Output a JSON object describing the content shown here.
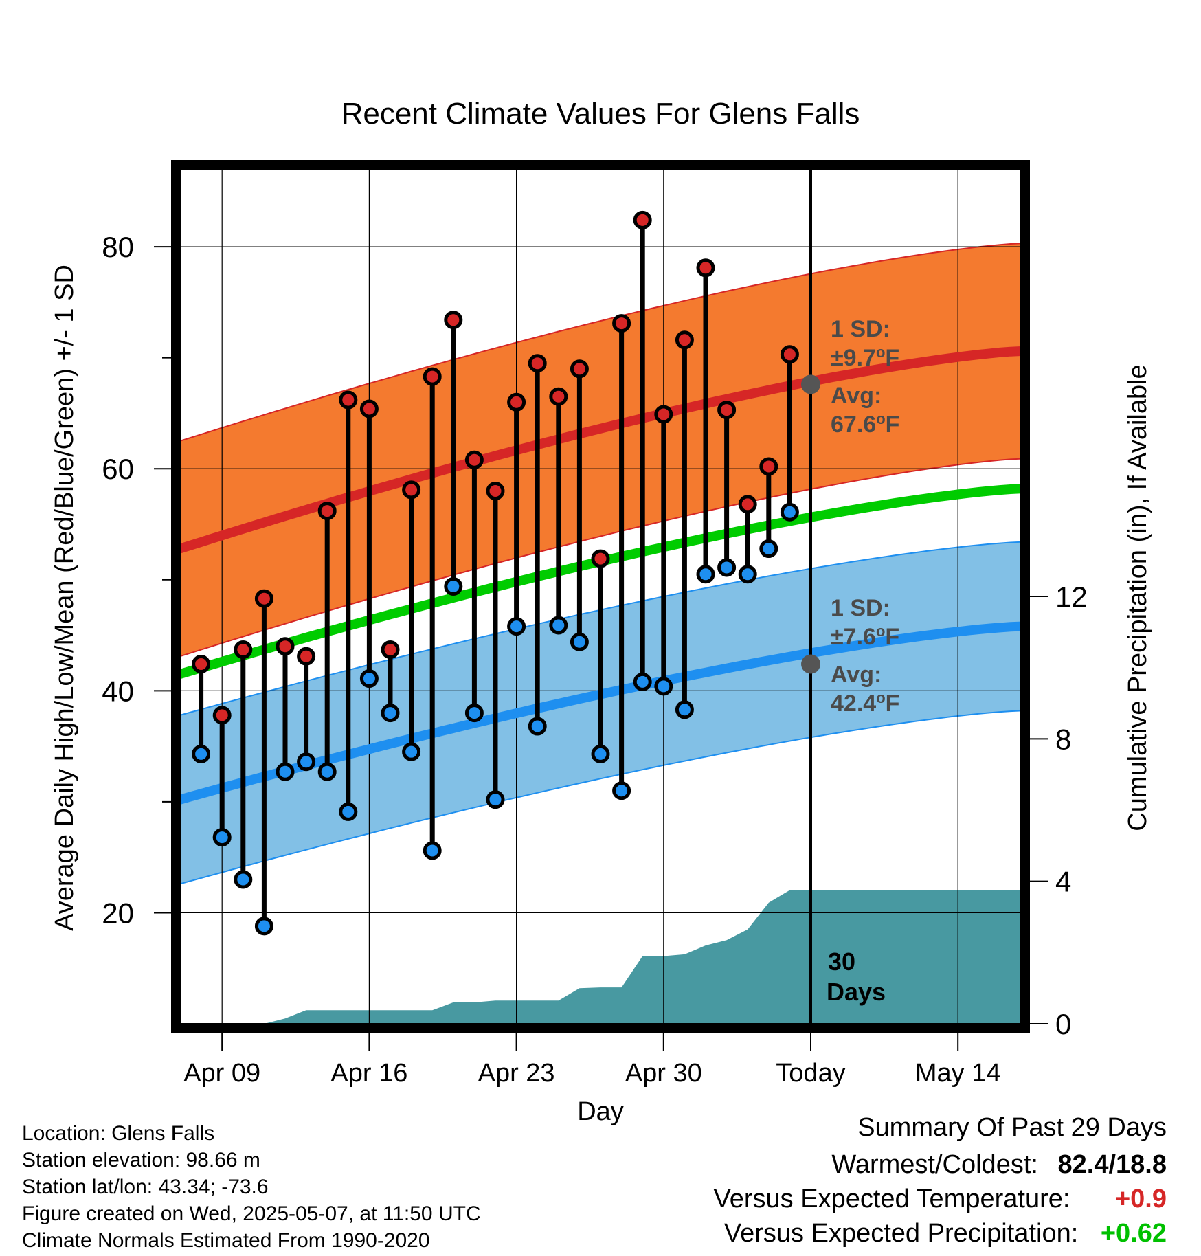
{
  "chart_data": {
    "type": "line",
    "title": "Recent Climate Values For Glens Falls",
    "xlabel": "Day",
    "ylabel": "Average Daily High/Low/Mean (Red/Blue/Green) +/- 1 SD",
    "y2label": "Cumulative Precipitation (in), If Available",
    "x_tick_labels": [
      "Apr 09",
      "Apr 16",
      "Apr 23",
      "Apr 30",
      "Today",
      "May 14"
    ],
    "ylim": [
      10,
      87
    ],
    "y_ticks": [
      20,
      40,
      60,
      80
    ],
    "y2lim": [
      0,
      24
    ],
    "y2_ticks": [
      0,
      4,
      8,
      12
    ],
    "x_days_start": "Apr 07",
    "x_days_end": "May 17",
    "today": "May 07",
    "normals": {
      "high_mean": {
        "start": 52.8,
        "end": 70.6
      },
      "high_sd": 9.7,
      "low_mean": {
        "start": 30.2,
        "end": 45.8
      },
      "low_sd": 7.6,
      "daily_mean": {
        "start": 41.5,
        "end": 58.2
      },
      "colors": {
        "high": "#d62626",
        "high_band": "#f47a2f",
        "low": "#1e8ff0",
        "low_band": "#82c0e6",
        "mean": "#00cc00",
        "precip": "#4899a1"
      }
    },
    "observed": {
      "dates": [
        "Apr 08",
        "Apr 09",
        "Apr 10",
        "Apr 11",
        "Apr 12",
        "Apr 13",
        "Apr 14",
        "Apr 15",
        "Apr 16",
        "Apr 17",
        "Apr 18",
        "Apr 19",
        "Apr 20",
        "Apr 21",
        "Apr 22",
        "Apr 23",
        "Apr 24",
        "Apr 25",
        "Apr 26",
        "Apr 27",
        "Apr 28",
        "Apr 29",
        "Apr 30",
        "May 01",
        "May 02",
        "May 03",
        "May 04",
        "May 05",
        "May 06"
      ],
      "highs": [
        42.4,
        37.8,
        43.7,
        48.3,
        44.0,
        43.1,
        56.2,
        66.2,
        65.4,
        43.7,
        58.1,
        68.3,
        73.4,
        60.8,
        58.0,
        66.0,
        69.5,
        66.5,
        69.0,
        51.9,
        73.1,
        82.4,
        64.9,
        71.6,
        78.1,
        65.3,
        56.8,
        60.2,
        70.3
      ],
      "lows": [
        34.3,
        26.8,
        23.0,
        18.8,
        32.7,
        33.6,
        32.7,
        29.1,
        41.1,
        38.0,
        34.5,
        25.6,
        49.4,
        38.0,
        30.2,
        45.8,
        36.8,
        45.9,
        44.4,
        34.3,
        31.0,
        40.8,
        40.4,
        38.3,
        50.5,
        51.1,
        50.5,
        52.8,
        56.1
      ]
    },
    "precip_cumulative": {
      "dates": [
        "Apr 07",
        "Apr 08",
        "Apr 09",
        "Apr 10",
        "Apr 11",
        "Apr 12",
        "Apr 13",
        "Apr 14",
        "Apr 15",
        "Apr 16",
        "Apr 17",
        "Apr 18",
        "Apr 19",
        "Apr 20",
        "Apr 21",
        "Apr 22",
        "Apr 23",
        "Apr 24",
        "Apr 25",
        "Apr 26",
        "Apr 27",
        "Apr 28",
        "Apr 29",
        "Apr 30",
        "May 01",
        "May 02",
        "May 03",
        "May 04",
        "May 05",
        "May 06",
        "May 07",
        "May 17"
      ],
      "values": [
        0,
        0,
        0,
        0,
        0.0,
        0.15,
        0.38,
        0.38,
        0.38,
        0.38,
        0.38,
        0.38,
        0.38,
        0.6,
        0.6,
        0.65,
        0.65,
        0.65,
        0.65,
        1.0,
        1.02,
        1.02,
        1.9,
        1.9,
        1.95,
        2.2,
        2.35,
        2.65,
        3.4,
        3.75,
        3.75,
        3.75
      ]
    },
    "annotations": {
      "high_sd_label": "1 SD:",
      "high_sd_value": "±9.7",
      "high_avg_label": "Avg:",
      "high_avg_value": "67.6",
      "low_sd_label": "1 SD:",
      "low_sd_value": "±7.6",
      "low_avg_label": "Avg:",
      "low_avg_value": "42.4",
      "unit_degree": "o",
      "unit_f": "F",
      "window_count": "30",
      "window_unit": "Days"
    }
  },
  "station": {
    "location": "Location: Glens Falls",
    "elevation": "Station elevation: 98.66 m",
    "latlon": "Station lat/lon: 43.34; -73.6",
    "created": "Figure created on Wed, 2025-05-07, at 11:50 UTC",
    "normals": "Climate Normals Estimated From 1990-2020"
  },
  "summary": {
    "heading": "Summary Of Past 29 Days",
    "warm_cold_label": "Warmest/Coldest:",
    "warm_cold_value": "82.4/18.8",
    "temp_label": "Versus Expected Temperature:",
    "temp_value": "+0.9",
    "temp_color": "#d62626",
    "precip_label": "Versus Expected Precipitation:",
    "precip_value": "+0.62",
    "precip_color": "#00c000"
  }
}
